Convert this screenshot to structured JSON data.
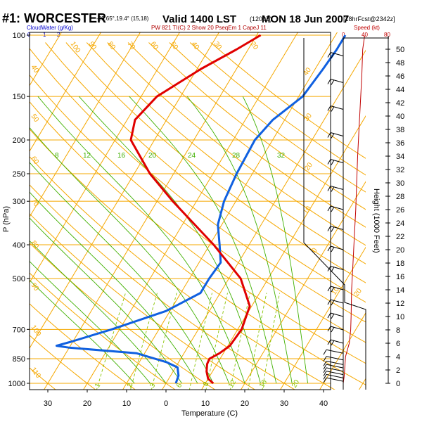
{
  "header": {
    "station": "#1: WORCESTER",
    "coords": "-33.65°,19.4° (15,18)",
    "valid": "Valid 1400 LST",
    "utc": "(1200Z)",
    "date": "MON 18 Jun 2007",
    "forecast": "[18hrFcst@2342z]"
  },
  "subheader": {
    "cloud_water": "CloudWater (g/Kg)",
    "cw_ticks": [
      "0",
      "1",
      "2"
    ],
    "indices": "PW 821 TI(C) 2 Show 20 PseqEm 1 CapeJ 11",
    "speed": "Speed (kt)",
    "speed_ticks": [
      "0",
      "40",
      "80"
    ]
  },
  "colors": {
    "isotherm": "#f5a800",
    "mixing_ratio": "#88c400",
    "moist_adiabat": "#40b000",
    "temperature": "#e00000",
    "dewpoint": "#1060e0",
    "speed": "#c00000",
    "cloud": "#0000cc"
  },
  "chart_data": {
    "type": "line",
    "title": "#1: WORCESTER",
    "xlabel": "Temperature (C)",
    "ylabel": "P (hPa)",
    "y2label": "Height (1000 Feet)",
    "x_ticks": [
      "30",
      "20",
      "10",
      "0",
      "10",
      "20",
      "30",
      "40"
    ],
    "p_ticks": [
      100,
      150,
      200,
      250,
      300,
      400,
      500,
      700,
      850,
      1000
    ],
    "height_ticks": [
      0,
      2,
      4,
      6,
      8,
      10,
      12,
      14,
      16,
      18,
      20,
      22,
      24,
      26,
      28,
      30,
      32,
      34,
      36,
      38,
      40,
      42,
      44,
      46,
      48,
      50
    ],
    "isotherm_labels": [
      "100",
      "90",
      "80",
      "70",
      "60",
      "50",
      "40",
      "30",
      "20",
      "10",
      "0",
      "10",
      "20",
      "30",
      "40"
    ],
    "mixing_ratio_labels": [
      "1",
      "2",
      "3",
      "6",
      "8",
      "12",
      "16",
      "20"
    ],
    "moist_labels": [
      "8",
      "12",
      "16",
      "20",
      "24",
      "28",
      "32"
    ],
    "theta_labels": [
      "40",
      "30",
      "20",
      "10",
      "0",
      "10",
      "20"
    ],
    "series": [
      {
        "name": "Temperature",
        "points": [
          [
            1000,
            12
          ],
          [
            970,
            10
          ],
          [
            925,
            8.5
          ],
          [
            880,
            7.5
          ],
          [
            850,
            7.3
          ],
          [
            820,
            9
          ],
          [
            780,
            10.5
          ],
          [
            700,
            11
          ],
          [
            600,
            9.5
          ],
          [
            500,
            3
          ],
          [
            400,
            -9
          ],
          [
            300,
            -26
          ],
          [
            250,
            -36
          ],
          [
            200,
            -46
          ],
          [
            175,
            -48
          ],
          [
            150,
            -46
          ],
          [
            125,
            -39
          ],
          [
            110,
            -33
          ],
          [
            100,
            -29
          ]
        ]
      },
      {
        "name": "Dewpoint",
        "points": [
          [
            1000,
            2.5
          ],
          [
            950,
            2
          ],
          [
            900,
            0.5
          ],
          [
            870,
            -3
          ],
          [
            820,
            -12
          ],
          [
            790,
            -30
          ],
          [
            780,
            -33.5
          ],
          [
            760,
            -30.5
          ],
          [
            700,
            -22
          ],
          [
            620,
            -11
          ],
          [
            550,
            -5
          ],
          [
            500,
            -5
          ],
          [
            450,
            -4.5
          ],
          [
            400,
            -7.5
          ],
          [
            350,
            -11
          ],
          [
            300,
            -13
          ],
          [
            250,
            -14
          ],
          [
            200,
            -14.5
          ],
          [
            175,
            -13
          ],
          [
            150,
            -9
          ],
          [
            125,
            -8
          ],
          [
            110,
            -7.5
          ],
          [
            100,
            -7.5
          ]
        ]
      }
    ],
    "speed_profile": [
      [
        0,
        0
      ],
      [
        1,
        2
      ],
      [
        2,
        3
      ],
      [
        3,
        4
      ],
      [
        4,
        5
      ],
      [
        5,
        9
      ],
      [
        6,
        13
      ],
      [
        8,
        16
      ],
      [
        10,
        17
      ],
      [
        14,
        18
      ],
      [
        18,
        21
      ],
      [
        22,
        24
      ],
      [
        26,
        27
      ],
      [
        30,
        29
      ],
      [
        34,
        31
      ],
      [
        38,
        34
      ],
      [
        42,
        37
      ],
      [
        46,
        40
      ],
      [
        50,
        42
      ],
      [
        52,
        46
      ]
    ],
    "cloud_water": [
      [
        0,
        0
      ]
    ]
  }
}
